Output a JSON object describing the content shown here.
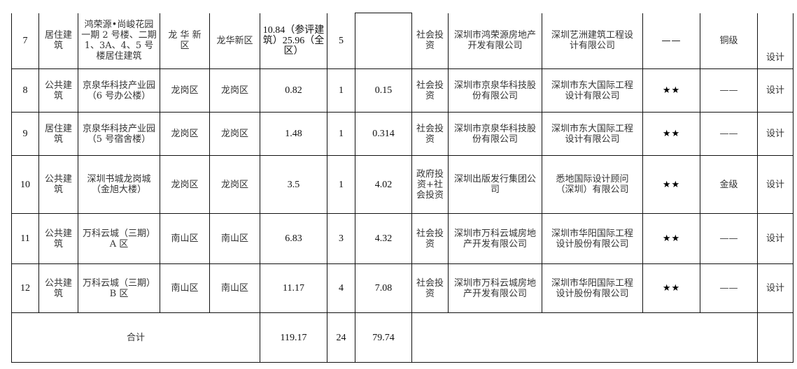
{
  "rows": [
    {
      "no": "7",
      "type": "居住建筑",
      "name": "鸿荣源•尚峻花园一期 2 号楼、二期 1、3A、4、5 号楼居住建筑",
      "district": "龙 华 新区",
      "street": "龙华新区",
      "area": "10.84（参评建筑）25.96（全区）",
      "count": "5",
      "value": "",
      "investment": "社会投资",
      "developer": "深圳市鸿荣源房地产开发有限公司",
      "designer": "深圳艺洲建筑工程设计有限公司",
      "stars": "——",
      "level": "铜级",
      "stage": "设计"
    },
    {
      "no": "8",
      "type": "公共建筑",
      "name": "京泉华科技产业园（6 号办公楼）",
      "district": "龙岗区",
      "street": "龙岗区",
      "area": "0.82",
      "count": "1",
      "value": "0.15",
      "investment": "社会投资",
      "developer": "深圳市京泉华科技股份有限公司",
      "designer": "深圳市东大国际工程设计有限公司",
      "stars": "★★",
      "level": "——",
      "stage": "设计"
    },
    {
      "no": "9",
      "type": "居住建筑",
      "name": "京泉华科技产业园（5 号宿舍楼）",
      "district": "龙岗区",
      "street": "龙岗区",
      "area": "1.48",
      "count": "1",
      "value": "0.314",
      "investment": "社会投资",
      "developer": "深圳市京泉华科技股份有限公司",
      "designer": "深圳市东大国际工程设计有限公司",
      "stars": "★★",
      "level": "——",
      "stage": "设计"
    },
    {
      "no": "10",
      "type": "公共建筑",
      "name": "深圳书城龙岗城（金旭大楼）",
      "district": "龙岗区",
      "street": "龙岗区",
      "area": "3.5",
      "count": "1",
      "value": "4.02",
      "investment": "政府投资+社会投资",
      "developer": "深圳出版发行集团公司",
      "designer": "悉地国际设计顾问（深圳）有限公司",
      "stars": "★★",
      "level": "金级",
      "stage": "设计"
    },
    {
      "no": "11",
      "type": "公共建筑",
      "name": "万科云城（三期）A 区",
      "district": "南山区",
      "street": "南山区",
      "area": "6.83",
      "count": "3",
      "value": "4.32",
      "investment": "社会投资",
      "developer": "深圳市万科云城房地产开发有限公司",
      "designer": "深圳市华阳国际工程设计股份有限公司",
      "stars": "★★",
      "level": "——",
      "stage": "设计"
    },
    {
      "no": "12",
      "type": "公共建筑",
      "name": "万科云城（三期）B 区",
      "district": "南山区",
      "street": "南山区",
      "area": "11.17",
      "count": "4",
      "value": "7.08",
      "investment": "社会投资",
      "developer": "深圳市万科云城房地产开发有限公司",
      "designer": "深圳市华阳国际工程设计股份有限公司",
      "stars": "★★",
      "level": "——",
      "stage": "设计"
    }
  ],
  "total": {
    "label": "合计",
    "area": "119.17",
    "count": "24",
    "value": "79.74"
  }
}
